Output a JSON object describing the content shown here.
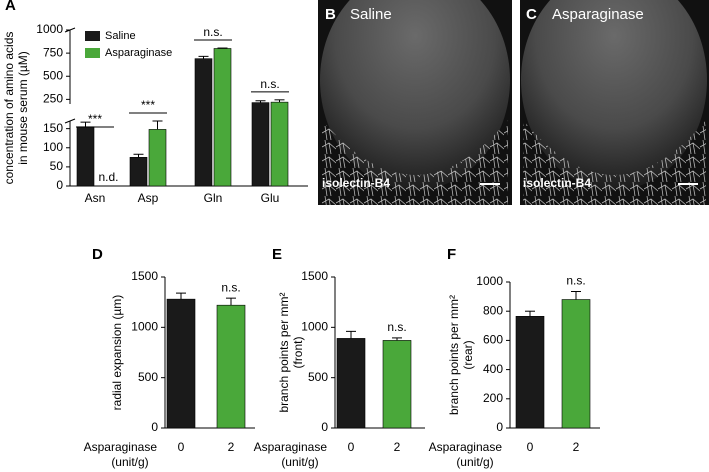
{
  "chart_data": [
    {
      "type": "bar",
      "panel": "A",
      "ylabel": [
        "concentration of amino acids",
        "in mouse serum (µM)"
      ],
      "categories": [
        "Asn",
        "Asp",
        "Gln",
        "Glu"
      ],
      "series": [
        {
          "name": "Saline",
          "color": "#1a1a1a",
          "values": [
            155,
            75,
            690,
            215
          ],
          "errors": [
            12,
            8,
            25,
            20
          ]
        },
        {
          "name": "Asparaginase",
          "color": "#4aa83a",
          "values": [
            null,
            148,
            800,
            220
          ],
          "errors": [
            null,
            22,
            5,
            25
          ],
          "value_labels": [
            "n.d.",
            null,
            null,
            null
          ]
        }
      ],
      "segments": [
        {
          "ylim": [
            0,
            170
          ],
          "yticks": [
            0,
            50,
            100,
            150
          ]
        },
        {
          "ylim": [
            200,
            1000
          ],
          "yticks": [
            250,
            500,
            750,
            1000
          ]
        }
      ],
      "significance": [
        "***",
        "***",
        "n.s.",
        "n.s."
      ]
    },
    {
      "type": "bar",
      "panel": "D",
      "ylabel": [
        "radial expansion (µm)"
      ],
      "xlabel": [
        "Asparaginase",
        "(unit/g)"
      ],
      "categories": [
        "0",
        "2"
      ],
      "values": [
        1280,
        1220
      ],
      "errors": [
        60,
        70
      ],
      "colors": [
        "#1a1a1a",
        "#4aa83a"
      ],
      "ylim": [
        0,
        1500
      ],
      "yticks": [
        0,
        500,
        1000,
        1500
      ],
      "significance": [
        null,
        "n.s."
      ]
    },
    {
      "type": "bar",
      "panel": "E",
      "ylabel": [
        "branch points per mm²",
        "(front)"
      ],
      "xlabel": [
        "Asparaginase",
        "(unit/g)"
      ],
      "categories": [
        "0",
        "2"
      ],
      "values": [
        890,
        870
      ],
      "errors": [
        70,
        25
      ],
      "colors": [
        "#1a1a1a",
        "#4aa83a"
      ],
      "ylim": [
        0,
        1500
      ],
      "yticks": [
        0,
        500,
        1000,
        1500
      ],
      "significance": [
        null,
        "n.s."
      ]
    },
    {
      "type": "bar",
      "panel": "F",
      "ylabel": [
        "branch points per mm²",
        "(rear)"
      ],
      "xlabel": [
        "Asparaginase",
        "(unit/g)"
      ],
      "categories": [
        "0",
        "2"
      ],
      "values": [
        765,
        880
      ],
      "errors": [
        35,
        55
      ],
      "colors": [
        "#1a1a1a",
        "#4aa83a"
      ],
      "ylim": [
        0,
        1000
      ],
      "yticks": [
        0,
        200,
        400,
        600,
        800,
        1000
      ],
      "significance": [
        null,
        "n.s."
      ]
    }
  ],
  "images": [
    {
      "panel": "B",
      "title": "Saline",
      "caption": "isolectin-B4"
    },
    {
      "panel": "C",
      "title": "Asparaginase",
      "caption": "isolectin-B4"
    }
  ]
}
